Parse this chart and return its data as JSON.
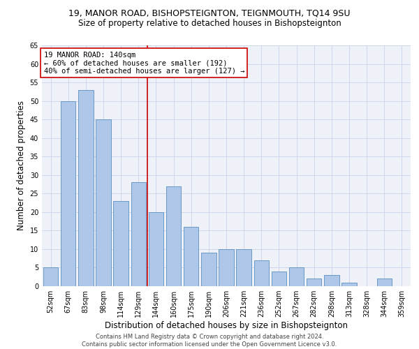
{
  "title": "19, MANOR ROAD, BISHOPSTEIGNTON, TEIGNMOUTH, TQ14 9SU",
  "subtitle": "Size of property relative to detached houses in Bishopsteignton",
  "xlabel": "Distribution of detached houses by size in Bishopsteignton",
  "ylabel": "Number of detached properties",
  "categories": [
    "52sqm",
    "67sqm",
    "83sqm",
    "98sqm",
    "114sqm",
    "129sqm",
    "144sqm",
    "160sqm",
    "175sqm",
    "190sqm",
    "206sqm",
    "221sqm",
    "236sqm",
    "252sqm",
    "267sqm",
    "282sqm",
    "298sqm",
    "313sqm",
    "328sqm",
    "344sqm",
    "359sqm"
  ],
  "values": [
    5,
    50,
    53,
    45,
    23,
    28,
    20,
    27,
    16,
    9,
    10,
    10,
    7,
    4,
    5,
    2,
    3,
    1,
    0,
    2,
    0
  ],
  "bar_color": "#aec6e8",
  "bar_edge_color": "#5a8fc2",
  "vline_color": "#cc0000",
  "annotation_text": "19 MANOR ROAD: 140sqm\n← 60% of detached houses are smaller (192)\n40% of semi-detached houses are larger (127) →",
  "annotation_box_color": "#ffffff",
  "annotation_box_edge": "#cc0000",
  "ylim": [
    0,
    65
  ],
  "yticks": [
    0,
    5,
    10,
    15,
    20,
    25,
    30,
    35,
    40,
    45,
    50,
    55,
    60,
    65
  ],
  "grid_color": "#c8d4e8",
  "bg_color": "#eef2f8",
  "footer": "Contains HM Land Registry data © Crown copyright and database right 2024.\nContains public sector information licensed under the Open Government Licence v3.0.",
  "title_fontsize": 9,
  "subtitle_fontsize": 8.5,
  "xlabel_fontsize": 8.5,
  "ylabel_fontsize": 8.5,
  "tick_fontsize": 7,
  "footer_fontsize": 6,
  "ann_fontsize": 7.5
}
